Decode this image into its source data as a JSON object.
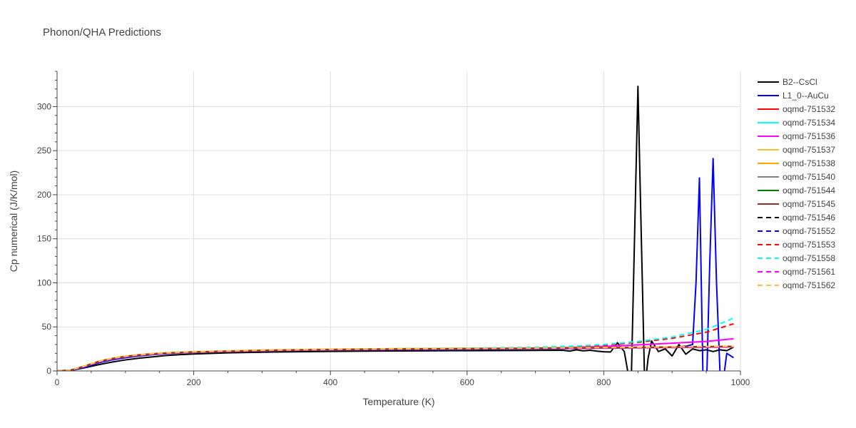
{
  "chart_data": {
    "type": "line",
    "title": "Phonon/QHA Predictions",
    "xlabel": "Temperature (K)",
    "ylabel": "Cp numerical (J/K/mol)",
    "xlim": [
      0,
      1000
    ],
    "ylim": [
      0,
      340
    ],
    "xticks": [
      0,
      200,
      400,
      600,
      800,
      1000
    ],
    "yticks": [
      0,
      50,
      100,
      150,
      200,
      250,
      300
    ],
    "grid": true,
    "legend_position": "right",
    "series": [
      {
        "name": "B2--CsCl",
        "color": "#000000",
        "dash": "solid",
        "x": [
          0,
          20,
          40,
          60,
          80,
          100,
          120,
          140,
          160,
          180,
          200,
          250,
          300,
          400,
          500,
          600,
          700,
          740,
          750,
          760,
          770,
          780,
          790,
          800,
          810,
          820,
          830,
          835,
          840,
          845,
          850,
          855,
          860,
          865,
          870,
          880,
          890,
          900,
          910,
          920,
          930,
          940,
          950,
          960,
          970,
          980,
          990
        ],
        "y": [
          0,
          0.5,
          3.5,
          7,
          10,
          12.5,
          14.5,
          16,
          17.5,
          18.5,
          19.2,
          20.5,
          21.3,
          22.2,
          22.7,
          23,
          23.3,
          23.5,
          22.5,
          24,
          22.8,
          23.5,
          22.5,
          21.8,
          21.5,
          32,
          22,
          0,
          -20,
          150,
          323,
          150,
          -20,
          15,
          34,
          22,
          25,
          17,
          30,
          19,
          25,
          23,
          24,
          22,
          24,
          23,
          27
        ]
      },
      {
        "name": "L1_0--AuCu",
        "color": "#0000ff",
        "dash": "solid",
        "x": [
          0,
          20,
          40,
          60,
          80,
          100,
          120,
          140,
          160,
          180,
          200,
          250,
          300,
          400,
          500,
          600,
          700,
          750,
          800,
          850,
          900,
          910,
          920,
          930,
          935,
          940,
          945,
          950,
          955,
          960,
          965,
          970,
          975,
          980,
          990
        ],
        "y": [
          0,
          0.7,
          4,
          9,
          12.5,
          15,
          17,
          18.5,
          19.5,
          20.3,
          21,
          22,
          22.8,
          23.7,
          24.2,
          24.6,
          25,
          25.3,
          26,
          26.5,
          27,
          27.5,
          28,
          30,
          100,
          219,
          0,
          -30,
          120,
          241,
          100,
          0,
          -10,
          20,
          15
        ]
      },
      {
        "name": "oqmd-751532",
        "color": "#ff0000",
        "dash": "solid",
        "x": [
          0,
          20,
          40,
          60,
          80,
          100,
          120,
          140,
          160,
          180,
          200,
          300,
          400,
          500,
          600,
          700,
          800,
          900,
          990
        ],
        "y": [
          0,
          0.8,
          5,
          10,
          13.5,
          16,
          17.8,
          19,
          20,
          20.7,
          21.3,
          23,
          24,
          24.6,
          25,
          25.4,
          26,
          26.8,
          27.5
        ]
      },
      {
        "name": "oqmd-751534",
        "color": "#00ffff",
        "dash": "solid",
        "x": [
          0,
          20,
          40,
          60,
          80,
          100,
          120,
          140,
          160,
          180,
          200,
          300,
          400,
          500,
          600,
          700,
          800,
          900,
          990
        ],
        "y": [
          0,
          0.9,
          5.2,
          10.3,
          13.8,
          16.3,
          18,
          19.2,
          20.1,
          20.8,
          21.4,
          23.1,
          24.1,
          24.7,
          25.1,
          25.5,
          26.1,
          26.9,
          27.6
        ]
      },
      {
        "name": "oqmd-751536",
        "color": "#ff00ff",
        "dash": "solid",
        "x": [
          0,
          20,
          40,
          60,
          80,
          100,
          120,
          140,
          160,
          180,
          200,
          300,
          400,
          500,
          600,
          700,
          750,
          800,
          850,
          900,
          950,
          990
        ],
        "y": [
          0,
          0.8,
          5,
          10,
          13.5,
          16,
          17.8,
          19,
          20,
          20.7,
          21.3,
          23,
          24,
          24.7,
          25.2,
          26,
          26.7,
          27.8,
          29.5,
          31.5,
          33.5,
          36.5
        ]
      },
      {
        "name": "oqmd-751537",
        "color": "#fbc02d",
        "dash": "solid",
        "x": [
          0,
          20,
          40,
          60,
          80,
          100,
          120,
          140,
          160,
          180,
          200,
          300,
          400,
          500,
          600,
          700,
          800,
          900,
          990
        ],
        "y": [
          0,
          0.9,
          5.3,
          10.5,
          14,
          16.5,
          18.2,
          19.4,
          20.3,
          21,
          21.6,
          23.4,
          24.4,
          25,
          25.4,
          25.8,
          26.3,
          27,
          27.6
        ]
      },
      {
        "name": "oqmd-751538",
        "color": "#ffa500",
        "dash": "solid",
        "x": [
          0,
          20,
          40,
          60,
          80,
          100,
          120,
          140,
          160,
          180,
          200,
          300,
          400,
          500,
          600,
          700,
          800,
          900,
          990
        ],
        "y": [
          0,
          1,
          5.6,
          10.8,
          14.3,
          16.8,
          18.5,
          19.7,
          20.6,
          21.3,
          21.9,
          23.7,
          24.7,
          25.3,
          25.7,
          26.1,
          26.6,
          27.3,
          27.9
        ]
      },
      {
        "name": "oqmd-751540",
        "color": "#808080",
        "dash": "solid",
        "x": [
          0,
          20,
          40,
          60,
          80,
          100,
          120,
          140,
          160,
          180,
          200,
          300,
          400,
          500,
          600,
          700,
          800,
          900,
          990
        ],
        "y": [
          0,
          0.8,
          5,
          10,
          13.5,
          16,
          17.8,
          19,
          19.9,
          20.6,
          21.2,
          22.9,
          23.9,
          24.5,
          24.9,
          25.3,
          25.9,
          26.6,
          27.3
        ]
      },
      {
        "name": "oqmd-751544",
        "color": "#008000",
        "dash": "solid",
        "x": [
          0,
          20,
          40,
          60,
          80,
          100,
          120,
          140,
          160,
          180,
          200,
          300,
          400,
          500,
          600,
          700,
          800,
          900,
          990
        ],
        "y": [
          0,
          0.9,
          5.2,
          10.3,
          13.8,
          16.3,
          18,
          19.2,
          20.1,
          20.8,
          21.4,
          23.2,
          24.2,
          24.8,
          25.2,
          25.6,
          26.2,
          27,
          27.7
        ]
      },
      {
        "name": "oqmd-751545",
        "color": "#a52a2a",
        "dash": "solid",
        "x": [
          0,
          20,
          40,
          60,
          80,
          100,
          120,
          140,
          160,
          180,
          200,
          300,
          400,
          500,
          600,
          700,
          800,
          900,
          990
        ],
        "y": [
          0,
          0.9,
          5.3,
          10.4,
          13.9,
          16.4,
          18.1,
          19.3,
          20.2,
          20.9,
          21.5,
          23.3,
          24.3,
          24.9,
          25.3,
          25.7,
          26.3,
          27.1,
          27.9
        ]
      },
      {
        "name": "oqmd-751546",
        "color": "#000000",
        "dash": "dash",
        "x": [
          0,
          20,
          40,
          60,
          80,
          100,
          120,
          140,
          160,
          180,
          200,
          300,
          400,
          500,
          600,
          700,
          800,
          900,
          990
        ],
        "y": [
          0,
          0.9,
          5.2,
          10.3,
          13.8,
          16.3,
          18,
          19.2,
          20.1,
          20.8,
          21.4,
          23.1,
          24.1,
          24.7,
          25.1,
          25.5,
          26.1,
          26.9,
          27.6
        ]
      },
      {
        "name": "oqmd-751552",
        "color": "#0000ff",
        "dash": "dash",
        "x": [
          0,
          20,
          40,
          60,
          80,
          100,
          120,
          140,
          160,
          180,
          200,
          300,
          400,
          500,
          600,
          700,
          800,
          900,
          990
        ],
        "y": [
          0,
          0.8,
          5.1,
          10.2,
          13.7,
          16.2,
          17.9,
          19.1,
          20,
          20.7,
          21.3,
          23,
          24,
          24.6,
          25,
          25.4,
          26,
          26.7,
          27.4
        ]
      },
      {
        "name": "oqmd-751553",
        "color": "#ff0000",
        "dash": "dash",
        "x": [
          0,
          20,
          40,
          60,
          80,
          100,
          120,
          140,
          160,
          180,
          200,
          300,
          400,
          500,
          600,
          700,
          750,
          800,
          850,
          900,
          950,
          990
        ],
        "y": [
          0,
          0.9,
          5.3,
          10.4,
          13.9,
          16.4,
          18.1,
          19.3,
          20.2,
          20.9,
          21.5,
          23.3,
          24.4,
          25.1,
          25.7,
          26.6,
          27.6,
          29.2,
          32.5,
          37,
          44,
          53.5
        ]
      },
      {
        "name": "oqmd-751558",
        "color": "#00ffff",
        "dash": "dash",
        "x": [
          0,
          20,
          40,
          60,
          80,
          100,
          120,
          140,
          160,
          180,
          200,
          300,
          400,
          500,
          600,
          700,
          750,
          800,
          850,
          900,
          950,
          990
        ],
        "y": [
          0,
          1,
          5.5,
          10.6,
          14.1,
          16.6,
          18.3,
          19.5,
          20.4,
          21.1,
          21.7,
          23.5,
          24.6,
          25.3,
          25.9,
          26.9,
          28,
          30,
          33.5,
          38.5,
          47,
          60
        ]
      },
      {
        "name": "oqmd-751561",
        "color": "#ff00ff",
        "dash": "dash",
        "x": [
          0,
          20,
          40,
          60,
          80,
          100,
          120,
          140,
          160,
          180,
          200,
          300,
          400,
          500,
          600,
          700,
          800,
          900,
          990
        ],
        "y": [
          0,
          0.8,
          5,
          10.1,
          13.6,
          16.1,
          17.8,
          19,
          19.9,
          20.6,
          21.2,
          22.9,
          23.9,
          24.5,
          24.9,
          25.3,
          25.8,
          26.4,
          27
        ]
      },
      {
        "name": "oqmd-751562",
        "color": "#fbc02d",
        "dash": "dash",
        "x": [
          0,
          20,
          40,
          60,
          80,
          100,
          120,
          140,
          160,
          180,
          200,
          300,
          400,
          500,
          600,
          700,
          800,
          900,
          990
        ],
        "y": [
          0,
          0.9,
          5.4,
          10.6,
          14.1,
          16.6,
          18.3,
          19.5,
          20.4,
          21.1,
          21.7,
          23.5,
          24.5,
          25.1,
          25.5,
          25.9,
          26.5,
          27.2,
          27.9
        ]
      }
    ]
  }
}
